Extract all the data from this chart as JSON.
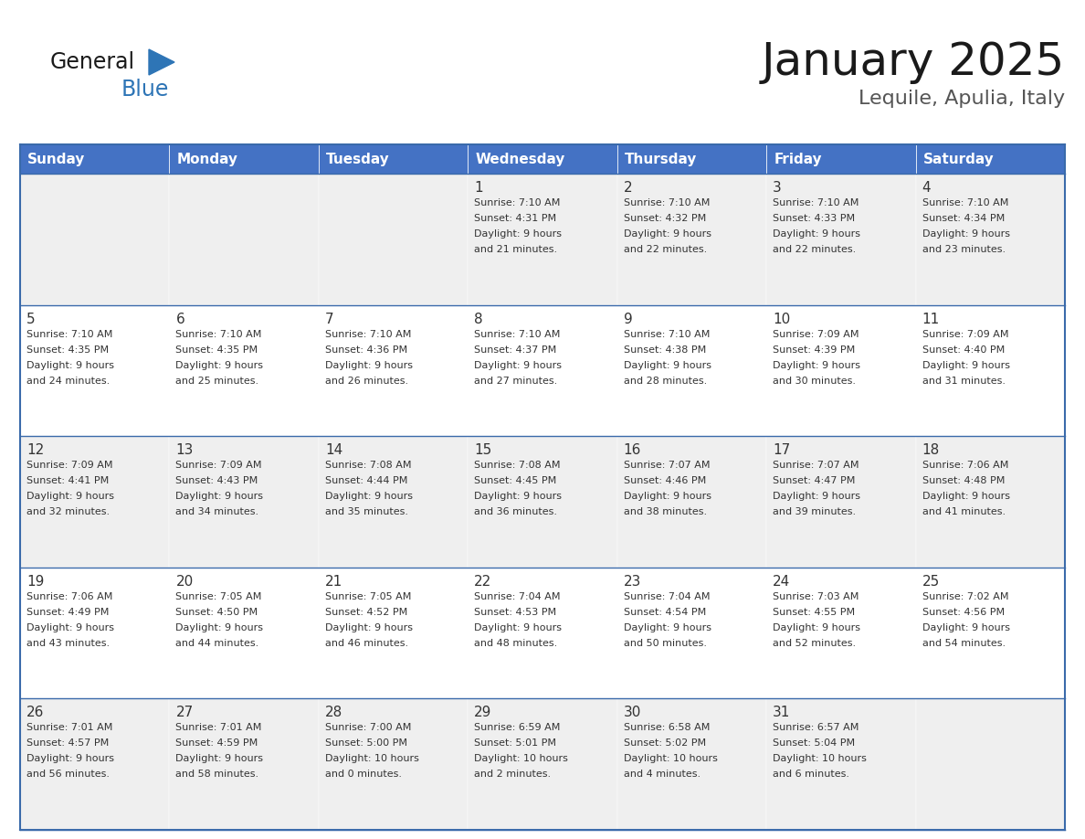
{
  "title": "January 2025",
  "subtitle": "Lequile, Apulia, Italy",
  "days_of_week": [
    "Sunday",
    "Monday",
    "Tuesday",
    "Wednesday",
    "Thursday",
    "Friday",
    "Saturday"
  ],
  "header_bg": "#4472C4",
  "header_text": "#FFFFFF",
  "cell_bg_odd": "#EFEFEF",
  "cell_bg_even": "#FFFFFF",
  "border_color": "#3A6AAA",
  "text_color": "#333333",
  "title_color": "#1a1a1a",
  "subtitle_color": "#555555",
  "logo_general_color": "#1a1a1a",
  "logo_blue_color": "#2E75B6",
  "logo_triangle_color": "#2E75B6",
  "weeks": [
    [
      {
        "day": "",
        "info": ""
      },
      {
        "day": "",
        "info": ""
      },
      {
        "day": "",
        "info": ""
      },
      {
        "day": "1",
        "info": "Sunrise: 7:10 AM\nSunset: 4:31 PM\nDaylight: 9 hours\nand 21 minutes."
      },
      {
        "day": "2",
        "info": "Sunrise: 7:10 AM\nSunset: 4:32 PM\nDaylight: 9 hours\nand 22 minutes."
      },
      {
        "day": "3",
        "info": "Sunrise: 7:10 AM\nSunset: 4:33 PM\nDaylight: 9 hours\nand 22 minutes."
      },
      {
        "day": "4",
        "info": "Sunrise: 7:10 AM\nSunset: 4:34 PM\nDaylight: 9 hours\nand 23 minutes."
      }
    ],
    [
      {
        "day": "5",
        "info": "Sunrise: 7:10 AM\nSunset: 4:35 PM\nDaylight: 9 hours\nand 24 minutes."
      },
      {
        "day": "6",
        "info": "Sunrise: 7:10 AM\nSunset: 4:35 PM\nDaylight: 9 hours\nand 25 minutes."
      },
      {
        "day": "7",
        "info": "Sunrise: 7:10 AM\nSunset: 4:36 PM\nDaylight: 9 hours\nand 26 minutes."
      },
      {
        "day": "8",
        "info": "Sunrise: 7:10 AM\nSunset: 4:37 PM\nDaylight: 9 hours\nand 27 minutes."
      },
      {
        "day": "9",
        "info": "Sunrise: 7:10 AM\nSunset: 4:38 PM\nDaylight: 9 hours\nand 28 minutes."
      },
      {
        "day": "10",
        "info": "Sunrise: 7:09 AM\nSunset: 4:39 PM\nDaylight: 9 hours\nand 30 minutes."
      },
      {
        "day": "11",
        "info": "Sunrise: 7:09 AM\nSunset: 4:40 PM\nDaylight: 9 hours\nand 31 minutes."
      }
    ],
    [
      {
        "day": "12",
        "info": "Sunrise: 7:09 AM\nSunset: 4:41 PM\nDaylight: 9 hours\nand 32 minutes."
      },
      {
        "day": "13",
        "info": "Sunrise: 7:09 AM\nSunset: 4:43 PM\nDaylight: 9 hours\nand 34 minutes."
      },
      {
        "day": "14",
        "info": "Sunrise: 7:08 AM\nSunset: 4:44 PM\nDaylight: 9 hours\nand 35 minutes."
      },
      {
        "day": "15",
        "info": "Sunrise: 7:08 AM\nSunset: 4:45 PM\nDaylight: 9 hours\nand 36 minutes."
      },
      {
        "day": "16",
        "info": "Sunrise: 7:07 AM\nSunset: 4:46 PM\nDaylight: 9 hours\nand 38 minutes."
      },
      {
        "day": "17",
        "info": "Sunrise: 7:07 AM\nSunset: 4:47 PM\nDaylight: 9 hours\nand 39 minutes."
      },
      {
        "day": "18",
        "info": "Sunrise: 7:06 AM\nSunset: 4:48 PM\nDaylight: 9 hours\nand 41 minutes."
      }
    ],
    [
      {
        "day": "19",
        "info": "Sunrise: 7:06 AM\nSunset: 4:49 PM\nDaylight: 9 hours\nand 43 minutes."
      },
      {
        "day": "20",
        "info": "Sunrise: 7:05 AM\nSunset: 4:50 PM\nDaylight: 9 hours\nand 44 minutes."
      },
      {
        "day": "21",
        "info": "Sunrise: 7:05 AM\nSunset: 4:52 PM\nDaylight: 9 hours\nand 46 minutes."
      },
      {
        "day": "22",
        "info": "Sunrise: 7:04 AM\nSunset: 4:53 PM\nDaylight: 9 hours\nand 48 minutes."
      },
      {
        "day": "23",
        "info": "Sunrise: 7:04 AM\nSunset: 4:54 PM\nDaylight: 9 hours\nand 50 minutes."
      },
      {
        "day": "24",
        "info": "Sunrise: 7:03 AM\nSunset: 4:55 PM\nDaylight: 9 hours\nand 52 minutes."
      },
      {
        "day": "25",
        "info": "Sunrise: 7:02 AM\nSunset: 4:56 PM\nDaylight: 9 hours\nand 54 minutes."
      }
    ],
    [
      {
        "day": "26",
        "info": "Sunrise: 7:01 AM\nSunset: 4:57 PM\nDaylight: 9 hours\nand 56 minutes."
      },
      {
        "day": "27",
        "info": "Sunrise: 7:01 AM\nSunset: 4:59 PM\nDaylight: 9 hours\nand 58 minutes."
      },
      {
        "day": "28",
        "info": "Sunrise: 7:00 AM\nSunset: 5:00 PM\nDaylight: 10 hours\nand 0 minutes."
      },
      {
        "day": "29",
        "info": "Sunrise: 6:59 AM\nSunset: 5:01 PM\nDaylight: 10 hours\nand 2 minutes."
      },
      {
        "day": "30",
        "info": "Sunrise: 6:58 AM\nSunset: 5:02 PM\nDaylight: 10 hours\nand 4 minutes."
      },
      {
        "day": "31",
        "info": "Sunrise: 6:57 AM\nSunset: 5:04 PM\nDaylight: 10 hours\nand 6 minutes."
      },
      {
        "day": "",
        "info": ""
      }
    ]
  ]
}
